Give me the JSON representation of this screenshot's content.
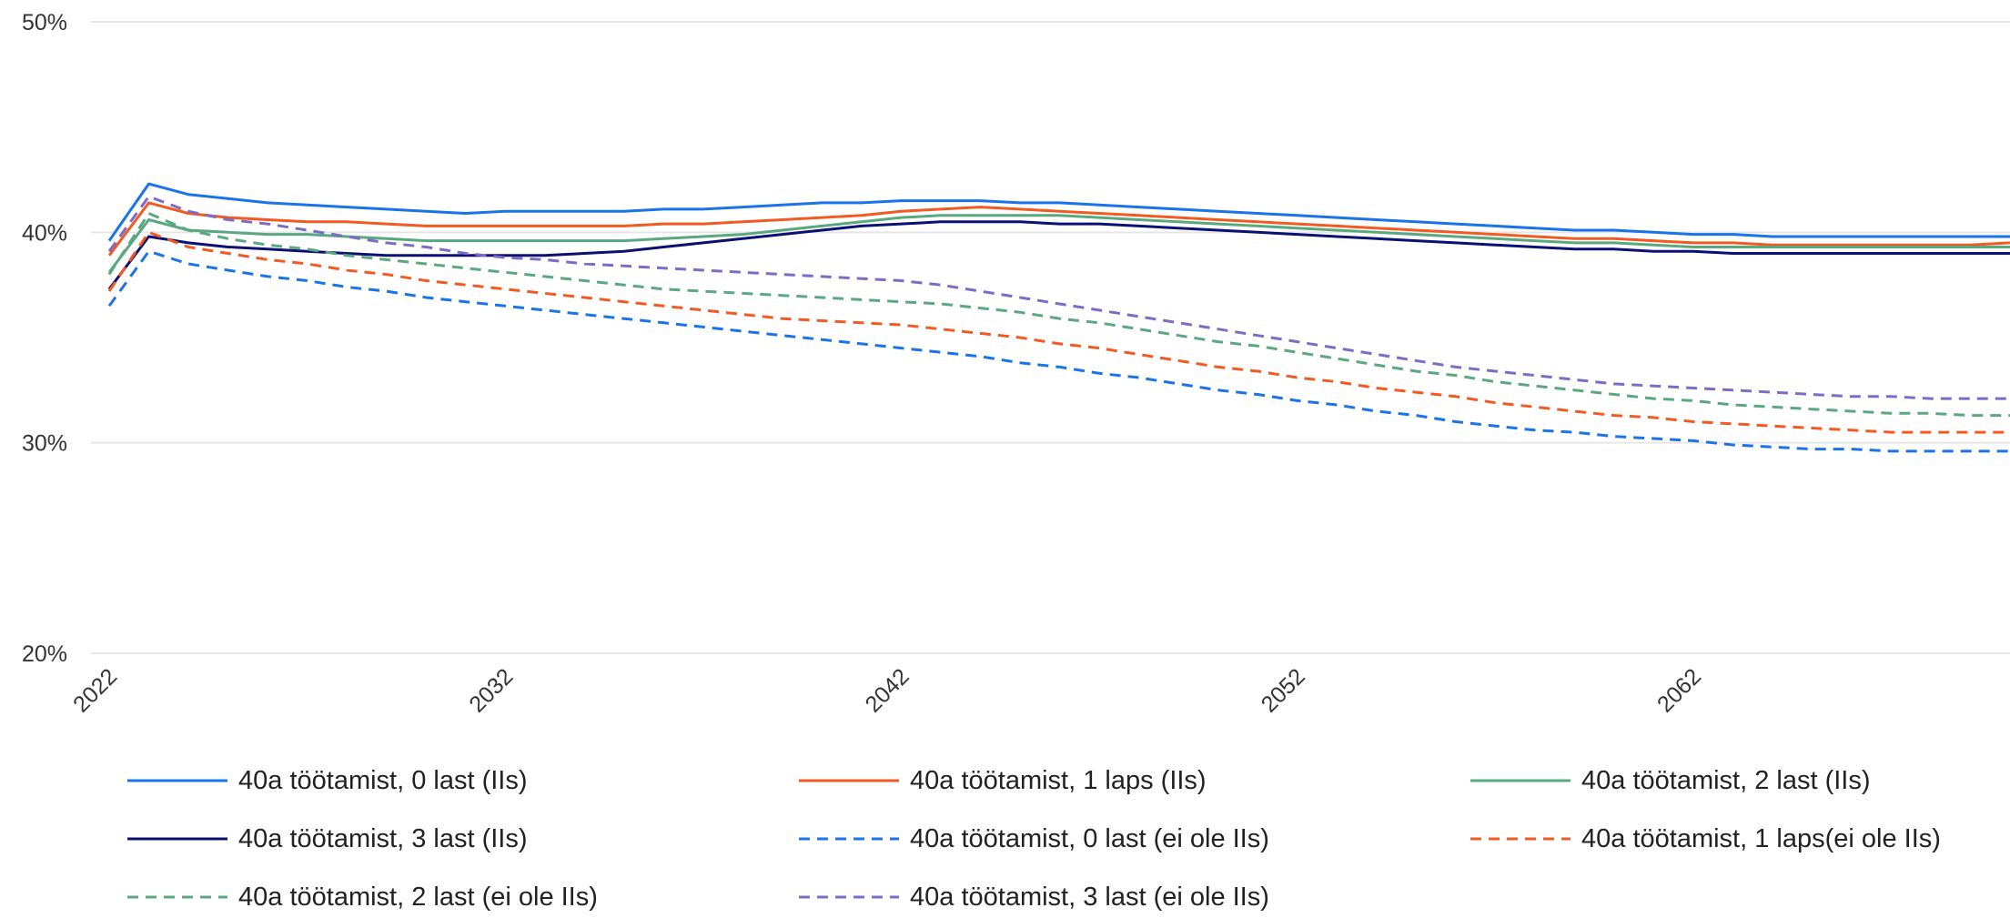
{
  "chart_data": {
    "type": "line",
    "title": "",
    "xlabel": "",
    "ylabel": "",
    "x": [
      2022,
      2023,
      2024,
      2025,
      2026,
      2027,
      2028,
      2029,
      2030,
      2031,
      2032,
      2033,
      2034,
      2035,
      2036,
      2037,
      2038,
      2039,
      2040,
      2041,
      2042,
      2043,
      2044,
      2045,
      2046,
      2047,
      2048,
      2049,
      2050,
      2051,
      2052,
      2053,
      2054,
      2055,
      2056,
      2057,
      2058,
      2059,
      2060,
      2061,
      2062,
      2063,
      2064,
      2065,
      2066,
      2067,
      2068,
      2069,
      2070
    ],
    "x_ticks": [
      "2022",
      "2032",
      "2042",
      "2052",
      "2062"
    ],
    "y_ticks": [
      "20%",
      "30%",
      "40%",
      "50%"
    ],
    "ylim": [
      20,
      50
    ],
    "grid": "horizontal",
    "legend_position": "bottom",
    "series": [
      {
        "name": "40a töötamist, 0 last (IIs)",
        "color": "#1a73e8",
        "dash": "solid",
        "values": [
          39.6,
          42.3,
          41.8,
          41.6,
          41.4,
          41.3,
          41.2,
          41.1,
          41.0,
          40.9,
          41.0,
          41.0,
          41.0,
          41.0,
          41.1,
          41.1,
          41.2,
          41.3,
          41.4,
          41.4,
          41.5,
          41.5,
          41.5,
          41.4,
          41.4,
          41.3,
          41.2,
          41.1,
          41.0,
          40.9,
          40.8,
          40.7,
          40.6,
          40.5,
          40.4,
          40.3,
          40.2,
          40.1,
          40.1,
          40.0,
          39.9,
          39.9,
          39.8,
          39.8,
          39.8,
          39.8,
          39.8,
          39.8,
          39.8
        ]
      },
      {
        "name": "40a töötamist, 1 laps (IIs)",
        "color": "#f15a22",
        "dash": "solid",
        "values": [
          38.9,
          41.4,
          40.9,
          40.7,
          40.6,
          40.5,
          40.5,
          40.4,
          40.3,
          40.3,
          40.3,
          40.3,
          40.3,
          40.3,
          40.4,
          40.4,
          40.5,
          40.6,
          40.7,
          40.8,
          41.0,
          41.1,
          41.2,
          41.1,
          41.0,
          40.9,
          40.8,
          40.7,
          40.6,
          40.5,
          40.4,
          40.3,
          40.2,
          40.1,
          40.0,
          39.9,
          39.8,
          39.7,
          39.7,
          39.6,
          39.5,
          39.5,
          39.4,
          39.4,
          39.4,
          39.4,
          39.4,
          39.4,
          39.5
        ]
      },
      {
        "name": "40a töötamist, 2 last (IIs)",
        "color": "#5aa87f",
        "dash": "solid",
        "values": [
          38.1,
          40.6,
          40.1,
          40.0,
          39.9,
          39.9,
          39.8,
          39.7,
          39.6,
          39.6,
          39.6,
          39.6,
          39.6,
          39.6,
          39.7,
          39.8,
          39.9,
          40.1,
          40.3,
          40.5,
          40.7,
          40.8,
          40.8,
          40.8,
          40.8,
          40.7,
          40.6,
          40.5,
          40.4,
          40.3,
          40.2,
          40.1,
          40.0,
          39.9,
          39.8,
          39.7,
          39.6,
          39.5,
          39.5,
          39.4,
          39.3,
          39.3,
          39.3,
          39.3,
          39.3,
          39.3,
          39.3,
          39.3,
          39.3
        ]
      },
      {
        "name": "40a töötamist, 3 last (IIs)",
        "color": "#0a1172",
        "dash": "solid",
        "values": [
          37.3,
          39.8,
          39.5,
          39.3,
          39.2,
          39.1,
          39.0,
          38.9,
          38.9,
          38.9,
          38.9,
          38.9,
          39.0,
          39.1,
          39.3,
          39.5,
          39.7,
          39.9,
          40.1,
          40.3,
          40.4,
          40.5,
          40.5,
          40.5,
          40.4,
          40.4,
          40.3,
          40.2,
          40.1,
          40.0,
          39.9,
          39.8,
          39.7,
          39.6,
          39.5,
          39.4,
          39.3,
          39.2,
          39.2,
          39.1,
          39.1,
          39.0,
          39.0,
          39.0,
          39.0,
          39.0,
          39.0,
          39.0,
          39.0
        ]
      },
      {
        "name": "40a töötamist, 0 last (ei ole IIs)",
        "color": "#1a73e8",
        "dash": "dashed",
        "values": [
          36.5,
          39.1,
          38.5,
          38.2,
          37.9,
          37.7,
          37.4,
          37.2,
          36.9,
          36.7,
          36.5,
          36.3,
          36.1,
          35.9,
          35.7,
          35.5,
          35.3,
          35.1,
          34.9,
          34.7,
          34.5,
          34.3,
          34.1,
          33.8,
          33.6,
          33.3,
          33.1,
          32.8,
          32.5,
          32.3,
          32.0,
          31.8,
          31.5,
          31.3,
          31.0,
          30.8,
          30.6,
          30.5,
          30.3,
          30.2,
          30.1,
          29.9,
          29.8,
          29.7,
          29.7,
          29.6,
          29.6,
          29.6,
          29.6
        ]
      },
      {
        "name": "40a töötamist, 1 laps(ei ole IIs)",
        "color": "#f15a22",
        "dash": "dashed",
        "values": [
          37.2,
          40.0,
          39.3,
          39.0,
          38.7,
          38.5,
          38.2,
          38.0,
          37.7,
          37.5,
          37.3,
          37.1,
          36.9,
          36.7,
          36.5,
          36.3,
          36.1,
          35.9,
          35.8,
          35.7,
          35.6,
          35.4,
          35.2,
          35.0,
          34.7,
          34.5,
          34.2,
          33.9,
          33.6,
          33.4,
          33.1,
          32.9,
          32.6,
          32.4,
          32.2,
          31.9,
          31.7,
          31.5,
          31.3,
          31.2,
          31.0,
          30.9,
          30.8,
          30.7,
          30.6,
          30.5,
          30.5,
          30.5,
          30.5
        ]
      },
      {
        "name": "40a töötamist, 2 last (ei ole IIs)",
        "color": "#5aa87f",
        "dash": "dashed",
        "values": [
          38.0,
          40.9,
          40.1,
          39.7,
          39.4,
          39.2,
          38.9,
          38.7,
          38.5,
          38.3,
          38.1,
          37.9,
          37.7,
          37.5,
          37.3,
          37.2,
          37.1,
          37.0,
          36.9,
          36.8,
          36.7,
          36.6,
          36.4,
          36.2,
          35.9,
          35.7,
          35.4,
          35.1,
          34.8,
          34.6,
          34.3,
          34.0,
          33.7,
          33.4,
          33.2,
          32.9,
          32.7,
          32.5,
          32.3,
          32.1,
          32.0,
          31.8,
          31.7,
          31.6,
          31.5,
          31.4,
          31.4,
          31.3,
          31.3
        ]
      },
      {
        "name": "40a töötamist, 3 last (ei ole IIs)",
        "color": "#7b6cc7",
        "dash": "dashed",
        "values": [
          39.1,
          41.7,
          41.0,
          40.6,
          40.4,
          40.1,
          39.8,
          39.5,
          39.3,
          39.0,
          38.8,
          38.7,
          38.5,
          38.4,
          38.3,
          38.2,
          38.1,
          38.0,
          37.9,
          37.8,
          37.7,
          37.5,
          37.2,
          36.9,
          36.6,
          36.3,
          36.0,
          35.7,
          35.4,
          35.1,
          34.8,
          34.5,
          34.2,
          33.9,
          33.6,
          33.4,
          33.2,
          33.0,
          32.8,
          32.7,
          32.6,
          32.5,
          32.4,
          32.3,
          32.2,
          32.2,
          32.1,
          32.1,
          32.1
        ]
      }
    ]
  }
}
